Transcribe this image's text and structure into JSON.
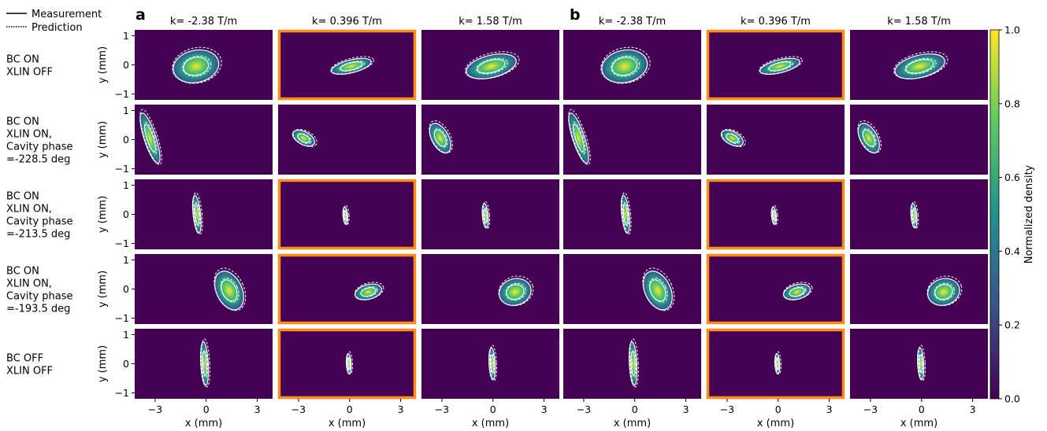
{
  "legend": {
    "measurement_label": "Measurement",
    "prediction_label": "Prediction"
  },
  "panels": [
    {
      "letter": "a",
      "column_titles": [
        "k= -2.38 T/m",
        "k= 0.396 T/m",
        "k= 1.58 T/m"
      ]
    },
    {
      "letter": "b",
      "column_titles": [
        "k= -2.38 T/m",
        "k= 0.396 T/m",
        "k= 1.58 T/m"
      ]
    }
  ],
  "rows": [
    {
      "label_lines": [
        "BC ON",
        "XLIN OFF"
      ]
    },
    {
      "label_lines": [
        "BC ON",
        "XLIN ON,",
        "Cavity phase",
        "=-228.5 deg"
      ]
    },
    {
      "label_lines": [
        "BC ON",
        "XLIN ON,",
        "Cavity phase",
        "=-213.5 deg"
      ]
    },
    {
      "label_lines": [
        "BC ON",
        "XLIN ON,",
        "Cavity phase",
        "=-193.5 deg"
      ]
    },
    {
      "label_lines": [
        "BC OFF",
        "XLIN OFF"
      ]
    }
  ],
  "colorbar": {
    "label": "Normalized density",
    "ticks": [
      "0.0",
      "0.2",
      "0.4",
      "0.6",
      "0.8",
      "1.0"
    ],
    "range": [
      0,
      1
    ],
    "colormap": [
      "#440154",
      "#3b528b",
      "#21918c",
      "#5ec962",
      "#fde725"
    ]
  },
  "colors": {
    "background": "#440154",
    "highlight_border": "#ff8c1a",
    "contour": "#ffffff"
  },
  "chart_data": {
    "type": "heatmap",
    "xlabel": "x (mm)",
    "ylabel": "y (mm)",
    "xticks": [
      -3,
      0,
      3
    ],
    "yticks": [
      -1,
      0,
      1
    ],
    "xlim": [
      -4.2,
      3.9
    ],
    "ylim": [
      -1.2,
      1.2
    ],
    "highlighted_columns": [
      1
    ],
    "grid": false,
    "beams": [
      [
        {
          "cx": -0.6,
          "cy": -0.05,
          "rx": 1.35,
          "ry": 0.55,
          "angle": 12
        },
        {
          "cx": 0.1,
          "cy": -0.05,
          "rx": 1.2,
          "ry": 0.22,
          "angle": 14
        },
        {
          "cx": -0.1,
          "cy": -0.05,
          "rx": 1.5,
          "ry": 0.38,
          "angle": 14
        }
      ],
      [
        {
          "cx": -3.3,
          "cy": 0.05,
          "rx": 0.35,
          "ry": 0.9,
          "angle": 18
        },
        {
          "cx": -2.7,
          "cy": 0.05,
          "rx": 0.7,
          "ry": 0.22,
          "angle": -28
        },
        {
          "cx": -3.1,
          "cy": 0.05,
          "rx": 0.5,
          "ry": 0.55,
          "angle": 28
        }
      ],
      [
        {
          "cx": -0.55,
          "cy": 0.0,
          "rx": 0.22,
          "ry": 0.65,
          "angle": 6
        },
        {
          "cx": -0.25,
          "cy": -0.05,
          "rx": 0.14,
          "ry": 0.3,
          "angle": 5
        },
        {
          "cx": -0.45,
          "cy": -0.05,
          "rx": 0.17,
          "ry": 0.42,
          "angle": 5
        }
      ],
      [
        {
          "cx": 1.35,
          "cy": -0.05,
          "rx": 0.75,
          "ry": 0.7,
          "angle": 25
        },
        {
          "cx": 1.1,
          "cy": -0.1,
          "rx": 0.8,
          "ry": 0.25,
          "angle": 15
        },
        {
          "cx": 1.3,
          "cy": -0.1,
          "rx": 0.95,
          "ry": 0.45,
          "angle": 18
        }
      ],
      [
        {
          "cx": -0.1,
          "cy": 0.0,
          "rx": 0.22,
          "ry": 0.75,
          "angle": 3
        },
        {
          "cx": -0.05,
          "cy": 0.0,
          "rx": 0.14,
          "ry": 0.35,
          "angle": 3
        },
        {
          "cx": -0.05,
          "cy": 0.0,
          "rx": 0.18,
          "ry": 0.55,
          "angle": 3
        }
      ]
    ]
  }
}
